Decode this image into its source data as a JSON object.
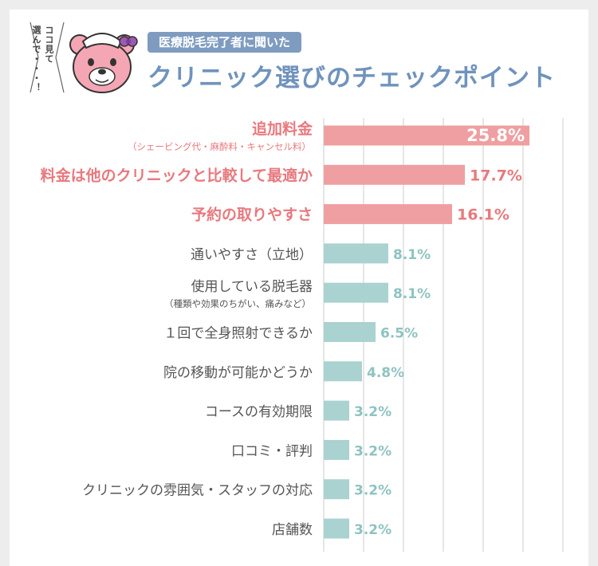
{
  "header": {
    "side_note_line1": "ココ見て",
    "side_note_line2": "選んで・・・！",
    "subtitle": "医療脱毛完了者に聞いた",
    "title": "クリニック選びのチェックポイント"
  },
  "colors": {
    "highlight_bar": "#ef9fa1",
    "highlight_text": "#e8797e",
    "normal_bar": "#a9d2d0",
    "normal_value": "#8ec3c1",
    "label_text": "#555555",
    "grid": "#cccccc",
    "title": "#6f93bd",
    "badge": "#7f9cc0"
  },
  "chart_data": {
    "type": "bar",
    "orientation": "horizontal",
    "title": "クリニック選びのチェックポイント",
    "xlim": [
      0,
      30
    ],
    "grid": true,
    "categories": [
      "追加料金",
      "料金は他のクリニックと比較して最適か",
      "予約の取りやすさ",
      "通いやすさ（立地）",
      "使用している脱毛器",
      "１回で全身照射できるか",
      "院の移動が可能かどうか",
      "コースの有効期限",
      "口コミ・評判",
      "クリニックの雰囲気・スタッフの対応",
      "店舗数"
    ],
    "sublabels": [
      "（シェービング代・麻酔料・キャンセル料）",
      "",
      "",
      "",
      "（種類や効果のちがい、痛みなど）",
      "",
      "",
      "",
      "",
      "",
      ""
    ],
    "values": [
      25.8,
      17.7,
      16.1,
      8.1,
      8.1,
      6.5,
      4.8,
      3.2,
      3.2,
      3.2,
      3.2
    ],
    "value_labels": [
      "25.8%",
      "17.7%",
      "16.1%",
      "8.1%",
      "8.1%",
      "6.5%",
      "4.8%",
      "3.2%",
      "3.2%",
      "3.2%",
      "3.2%"
    ],
    "highlighted": [
      true,
      true,
      true,
      false,
      false,
      false,
      false,
      false,
      false,
      false,
      false
    ]
  }
}
